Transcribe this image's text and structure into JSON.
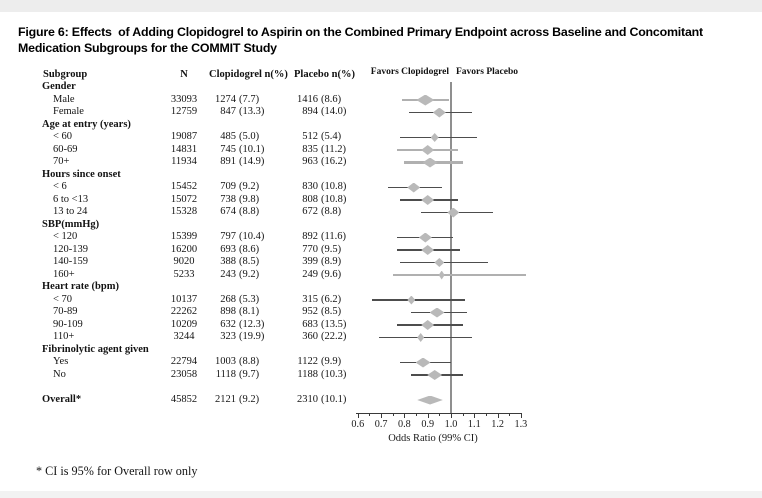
{
  "title": "Figure 6: Effects  of Adding Clopidogrel to Aspirin on the Combined Primary Endpoint across Baseline and Concomitant Medication Subgroups for the COMMIT Study",
  "footnote": "* CI is 95% for Overall row only",
  "table": {
    "columns": {
      "subgroup": "Subgroup",
      "n": "N",
      "clopidogrel": "Clopidogrel n(%)",
      "placebo": "Placebo n(%)"
    }
  },
  "plot_header": {
    "favors_left": "Favors Clopidogrel",
    "favors_right": "Favors Placebo"
  },
  "axis": {
    "label": "Odds Ratio (99% CI)",
    "tick_labels": [
      "0.6",
      "0.7",
      "0.8",
      "0.9",
      "1.0",
      "1.1",
      "1.2",
      "1.3"
    ],
    "min": 0.6,
    "max": 1.3,
    "minor_step": 0.05,
    "reference": 1.0
  },
  "colors": {
    "diamond": "#b9b9b9",
    "line_dark": "#4d4d4d",
    "line_light": "#b0b0b0",
    "axis": "#3a3a3a",
    "ref_line": "#8f8f8f",
    "text": "#141414"
  },
  "chart_data": {
    "type": "forest",
    "x_unit": "odds_ratio",
    "title": "Effects of Adding Clopidogrel to Aspirin on the Combined Primary Endpoint across Baseline and Concomitant Medication Subgroups (COMMIT Study)",
    "xlabel": "Odds Ratio (99% CI)",
    "xlim": [
      0.6,
      1.3
    ],
    "reference_line": 1.0,
    "rows": [
      {
        "label": "Gender",
        "kind": "group"
      },
      {
        "label": "Male",
        "kind": "item",
        "n": "33093",
        "clop_n": "1274",
        "clop_pct": "(7.7)",
        "plac_n": "1416",
        "plac_pct": "(8.6)",
        "or": 0.89,
        "ci_low": 0.79,
        "ci_high": 0.99,
        "dw": 18,
        "dh": 11,
        "line": "light"
      },
      {
        "label": "Female",
        "kind": "item",
        "n": "12759",
        "clop_n": "847",
        "clop_pct": "(13.3)",
        "plac_n": "894",
        "plac_pct": "(14.0)",
        "or": 0.95,
        "ci_low": 0.82,
        "ci_high": 1.09,
        "dw": 13,
        "dh": 10,
        "line": "dark"
      },
      {
        "label": "Age at entry (years)",
        "kind": "group"
      },
      {
        "label": "< 60",
        "kind": "item",
        "n": "19087",
        "clop_n": "485",
        "clop_pct": "(5.0)",
        "plac_n": "512",
        "plac_pct": "(5.4)",
        "or": 0.93,
        "ci_low": 0.78,
        "ci_high": 1.11,
        "dw": 8,
        "dh": 9,
        "line": "dark"
      },
      {
        "label": "60-69",
        "kind": "item",
        "n": "14831",
        "clop_n": "745",
        "clop_pct": "(10.1)",
        "plac_n": "835",
        "plac_pct": "(11.2)",
        "or": 0.9,
        "ci_low": 0.77,
        "ci_high": 1.03,
        "dw": 13,
        "dh": 10,
        "line": "light"
      },
      {
        "label": "70+",
        "kind": "item",
        "n": "11934",
        "clop_n": "891",
        "clop_pct": "(14.9)",
        "plac_n": "963",
        "plac_pct": "(16.2)",
        "or": 0.91,
        "ci_low": 0.8,
        "ci_high": 1.05,
        "dw": 15,
        "dh": 10,
        "line": "light",
        "thick": true
      },
      {
        "label": "Hours since onset",
        "kind": "group"
      },
      {
        "label": "< 6",
        "kind": "item",
        "n": "15452",
        "clop_n": "709",
        "clop_pct": "(9.2)",
        "plac_n": "830",
        "plac_pct": "(10.8)",
        "or": 0.84,
        "ci_low": 0.73,
        "ci_high": 0.96,
        "dw": 13,
        "dh": 10,
        "line": "dark"
      },
      {
        "label": "6 to <13",
        "kind": "item",
        "n": "15072",
        "clop_n": "738",
        "clop_pct": "(9.8)",
        "plac_n": "808",
        "plac_pct": "(10.8)",
        "or": 0.9,
        "ci_low": 0.78,
        "ci_high": 1.03,
        "dw": 13,
        "dh": 10,
        "line": "dark"
      },
      {
        "label": "13 to 24",
        "kind": "item",
        "n": "15328",
        "clop_n": "674",
        "clop_pct": "(8.8)",
        "plac_n": "672",
        "plac_pct": "(8.8)",
        "or": 1.01,
        "ci_low": 0.87,
        "ci_high": 1.18,
        "dw": 12,
        "dh": 10,
        "line": "dark"
      },
      {
        "label": "SBP(mmHg)",
        "kind": "group"
      },
      {
        "label": "< 120",
        "kind": "item",
        "n": "15399",
        "clop_n": "797",
        "clop_pct": "(10.4)",
        "plac_n": "892",
        "plac_pct": "(11.6)",
        "or": 0.89,
        "ci_low": 0.77,
        "ci_high": 1.01,
        "dw": 13,
        "dh": 10,
        "line": "dark"
      },
      {
        "label": "120-139",
        "kind": "item",
        "n": "16200",
        "clop_n": "693",
        "clop_pct": "(8.6)",
        "plac_n": "770",
        "plac_pct": "(9.5)",
        "or": 0.9,
        "ci_low": 0.77,
        "ci_high": 1.04,
        "dw": 13,
        "dh": 10,
        "line": "dark"
      },
      {
        "label": "140-159",
        "kind": "item",
        "n": "9020",
        "clop_n": "388",
        "clop_pct": "(8.5)",
        "plac_n": "399",
        "plac_pct": "(8.9)",
        "or": 0.95,
        "ci_low": 0.78,
        "ci_high": 1.16,
        "dw": 10,
        "dh": 9,
        "line": "dark"
      },
      {
        "label": "160+",
        "kind": "item",
        "n": "5233",
        "clop_n": "243",
        "clop_pct": "(9.2)",
        "plac_n": "249",
        "plac_pct": "(9.6)",
        "or": 0.96,
        "ci_low": 0.75,
        "ci_high": 1.32,
        "dw": 6,
        "dh": 9,
        "line": "light"
      },
      {
        "label": "Heart rate (bpm)",
        "kind": "group"
      },
      {
        "label": "< 70",
        "kind": "item",
        "n": "10137",
        "clop_n": "268",
        "clop_pct": "(5.3)",
        "plac_n": "315",
        "plac_pct": "(6.2)",
        "or": 0.83,
        "ci_low": 0.66,
        "ci_high": 1.06,
        "dw": 8,
        "dh": 9,
        "line": "dark"
      },
      {
        "label": "70-89",
        "kind": "item",
        "n": "22262",
        "clop_n": "898",
        "clop_pct": "(8.1)",
        "plac_n": "952",
        "plac_pct": "(8.5)",
        "or": 0.94,
        "ci_low": 0.83,
        "ci_high": 1.07,
        "dw": 15,
        "dh": 10,
        "line": "dark"
      },
      {
        "label": "90-109",
        "kind": "item",
        "n": "10209",
        "clop_n": "632",
        "clop_pct": "(12.3)",
        "plac_n": "683",
        "plac_pct": "(13.5)",
        "or": 0.9,
        "ci_low": 0.77,
        "ci_high": 1.05,
        "dw": 13,
        "dh": 10,
        "line": "dark"
      },
      {
        "label": "110+",
        "kind": "item",
        "n": "3244",
        "clop_n": "323",
        "clop_pct": "(19.9)",
        "plac_n": "360",
        "plac_pct": "(22.2)",
        "or": 0.87,
        "ci_low": 0.69,
        "ci_high": 1.09,
        "dw": 7,
        "dh": 9,
        "line": "dark"
      },
      {
        "label": "Fibrinolytic agent given",
        "kind": "group"
      },
      {
        "label": "Yes",
        "kind": "item",
        "n": "22794",
        "clop_n": "1003",
        "clop_pct": "(8.8)",
        "plac_n": "1122",
        "plac_pct": "(9.9)",
        "or": 0.88,
        "ci_low": 0.78,
        "ci_high": 1.0,
        "dw": 15,
        "dh": 10,
        "line": "dark"
      },
      {
        "label": "No",
        "kind": "item",
        "n": "23058",
        "clop_n": "1118",
        "clop_pct": "(9.7)",
        "plac_n": "1188",
        "plac_pct": "(10.3)",
        "or": 0.93,
        "ci_low": 0.83,
        "ci_high": 1.05,
        "dw": 15,
        "dh": 10,
        "line": "dark"
      },
      {
        "label": "Overall*",
        "kind": "overall",
        "gap_before": true,
        "n": "45852",
        "clop_n": "2121",
        "clop_pct": "(9.2)",
        "plac_n": "2310",
        "plac_pct": "(10.1)",
        "or": 0.91,
        "ci_low": 0.86,
        "ci_high": 0.97,
        "dh": 9,
        "line": "none"
      }
    ]
  }
}
